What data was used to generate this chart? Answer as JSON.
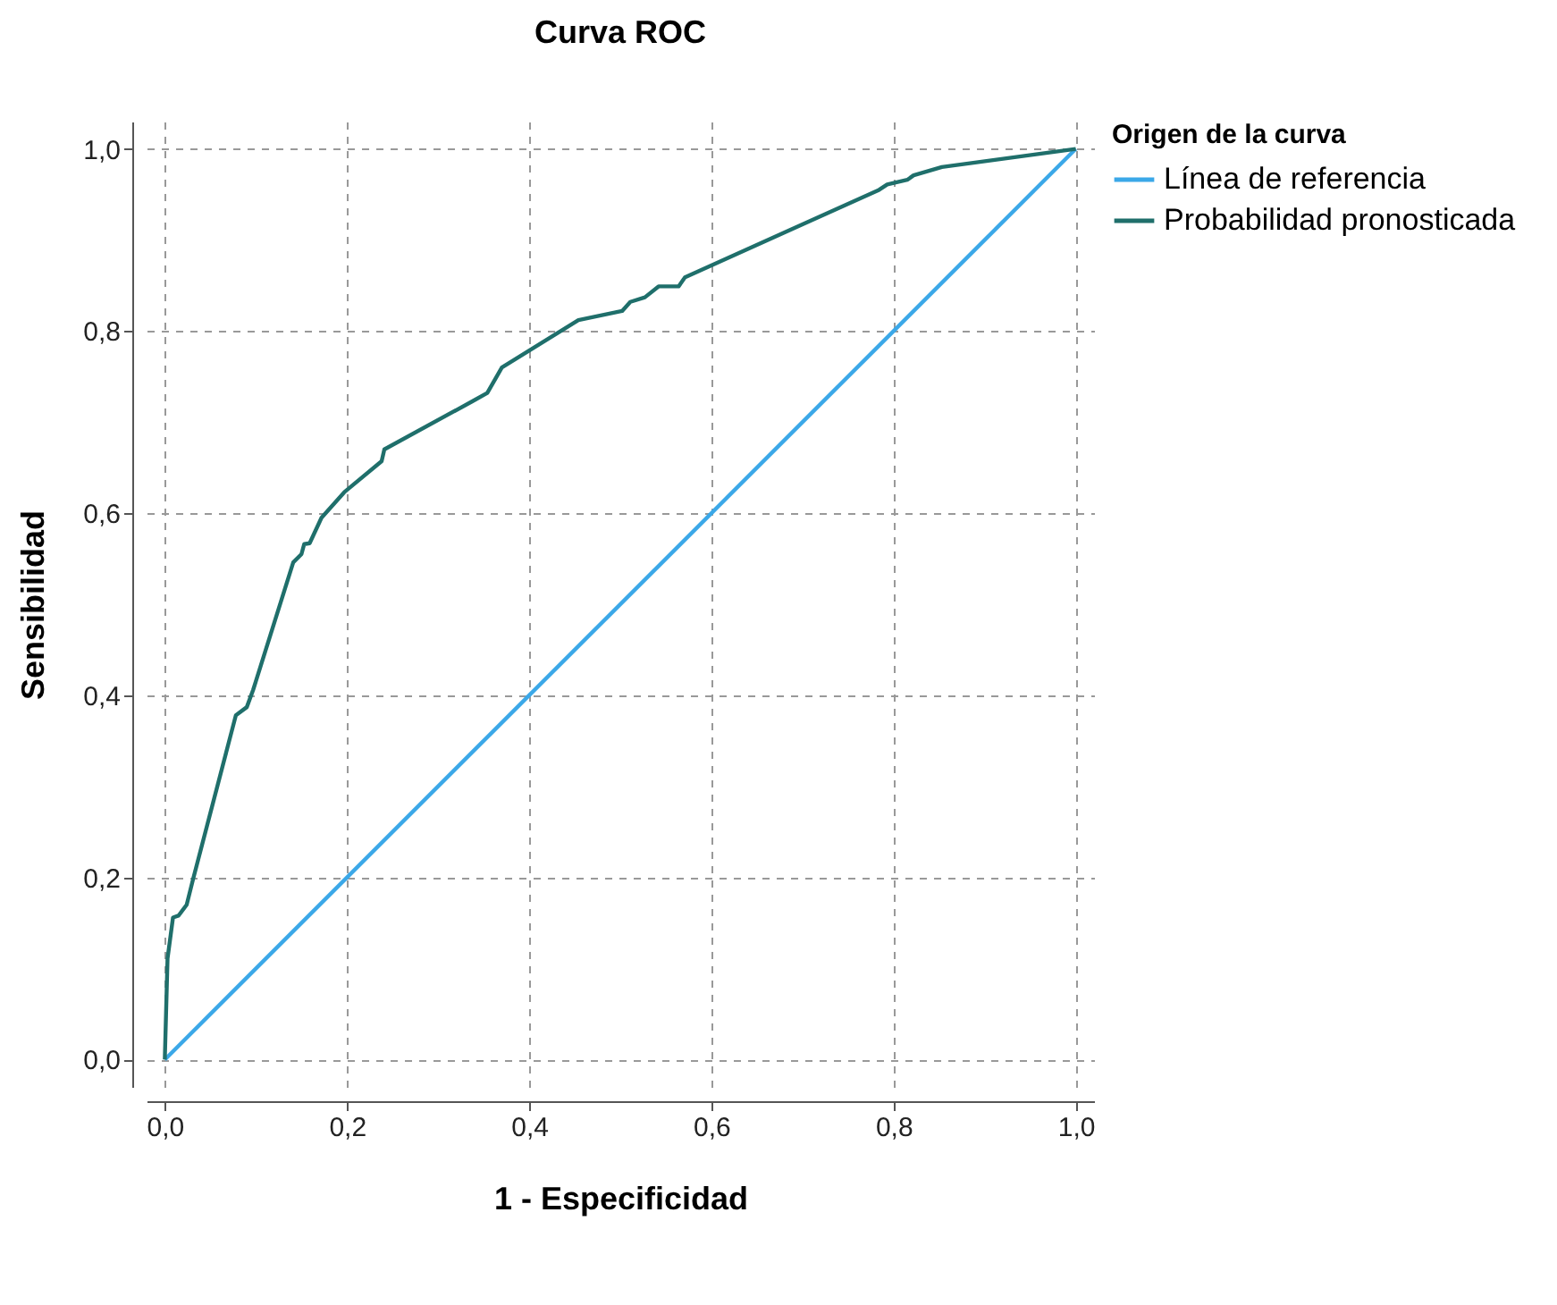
{
  "chart_data": {
    "type": "line",
    "title": "Curva ROC",
    "xlabel": "1 - Especificidad",
    "ylabel": "Sensibilidad",
    "legend_title": "Origen de la curva",
    "legend": "top right",
    "grid": true,
    "xlim": [
      -0.02,
      1.02
    ],
    "ylim": [
      -0.03,
      1.03
    ],
    "xticks": [
      {
        "value": 0,
        "label": "0,0"
      },
      {
        "value": 0.2,
        "label": "0,2"
      },
      {
        "value": 0.4,
        "label": "0,4"
      },
      {
        "value": 0.6,
        "label": "0,6"
      },
      {
        "value": 0.8,
        "label": "0,8"
      },
      {
        "value": 1,
        "label": "1,0"
      }
    ],
    "yticks": [
      {
        "value": 0,
        "label": "0,0"
      },
      {
        "value": 0.2,
        "label": "0,2"
      },
      {
        "value": 0.4,
        "label": "0,4"
      },
      {
        "value": 0.6,
        "label": "0,6"
      },
      {
        "value": 0.8,
        "label": "0,8"
      },
      {
        "value": 1,
        "label": "1,0"
      }
    ],
    "series": [
      {
        "name": "Línea de referencia",
        "color": "#3ba8e8",
        "x": [
          0,
          1
        ],
        "values": [
          0,
          1
        ]
      },
      {
        "name": "Probabilidad pronosticada",
        "color": "#1f6f6b",
        "x": [
          0,
          0.003,
          0.009,
          0.015,
          0.024,
          0.031,
          0.078,
          0.09,
          0.097,
          0.141,
          0.15,
          0.153,
          0.159,
          0.172,
          0.197,
          0.238,
          0.241,
          0.338,
          0.354,
          0.37,
          0.454,
          0.502,
          0.511,
          0.527,
          0.542,
          0.564,
          0.571,
          0.784,
          0.793,
          0.815,
          0.822,
          0.853,
          1
        ],
        "values": [
          0,
          0.111,
          0.156,
          0.158,
          0.17,
          0.198,
          0.378,
          0.387,
          0.406,
          0.546,
          0.555,
          0.566,
          0.567,
          0.595,
          0.623,
          0.657,
          0.67,
          0.723,
          0.732,
          0.76,
          0.812,
          0.822,
          0.832,
          0.837,
          0.849,
          0.849,
          0.859,
          0.955,
          0.961,
          0.966,
          0.971,
          0.98,
          1
        ]
      }
    ]
  }
}
